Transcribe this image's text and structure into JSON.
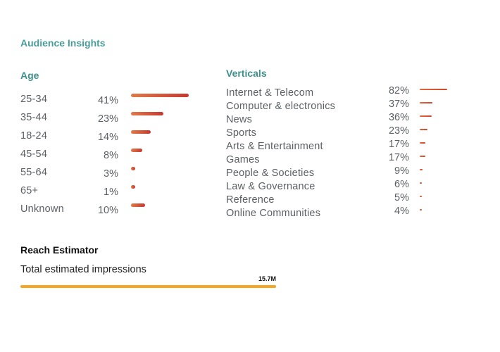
{
  "title": "Audience Insights",
  "age": {
    "heading": "Age",
    "rows": [
      {
        "label": "25-34",
        "pct": "41%",
        "value": 41
      },
      {
        "label": "35-44",
        "pct": "23%",
        "value": 23
      },
      {
        "label": "18-24",
        "pct": "14%",
        "value": 14
      },
      {
        "label": "45-54",
        "pct": "8%",
        "value": 8
      },
      {
        "label": "55-64",
        "pct": "3%",
        "value": 3
      },
      {
        "label": "65+",
        "pct": "1%",
        "value": 1
      },
      {
        "label": "Unknown",
        "pct": "10%",
        "value": 10
      }
    ]
  },
  "verticals": {
    "heading": "Verticals",
    "rows": [
      {
        "label": "Internet & Telecom",
        "pct": "82%",
        "value": 82
      },
      {
        "label": "Computer & electronics",
        "pct": "37%",
        "value": 37
      },
      {
        "label": "News",
        "pct": "36%",
        "value": 36
      },
      {
        "label": "Sports",
        "pct": "23%",
        "value": 23
      },
      {
        "label": "Arts & Entertainment",
        "pct": "17%",
        "value": 17
      },
      {
        "label": "Games",
        "pct": "17%",
        "value": 17
      },
      {
        "label": "People & Societies",
        "pct": "9%",
        "value": 9
      },
      {
        "label": "Law & Governance",
        "pct": "6%",
        "value": 6
      },
      {
        "label": "Reference",
        "pct": "5%",
        "value": 5
      },
      {
        "label": "Online Communities",
        "pct": "4%",
        "value": 4
      }
    ]
  },
  "reach": {
    "heading": "Reach Estimator",
    "label": "Total estimated impressions",
    "value": "15.7M",
    "fill_fraction": 1.0
  },
  "colors": {
    "accent": "#4a9c98",
    "bar_start": "#e07a4a",
    "bar_end": "#c6392f",
    "reach_bar": "#f5a623"
  }
}
